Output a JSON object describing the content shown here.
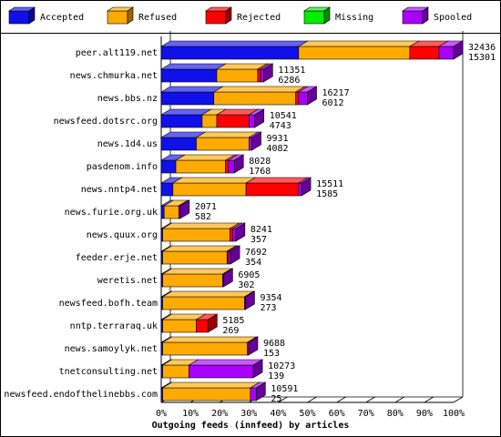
{
  "chart_data": {
    "type": "bar3d",
    "title": "Outgoing feeds (innfeed) by articles",
    "categories": [
      "peer.alt119.net",
      "news.chmurka.net",
      "news.bbs.nz",
      "newsfeed.dotsrc.org",
      "news.1d4.us",
      "pasdenom.info",
      "news.nntp4.net",
      "news.furie.org.uk",
      "news.quux.org",
      "feeder.erje.net",
      "weretis.net",
      "newsfeed.bofh.team",
      "nntp.terraraq.uk",
      "news.samoylyk.net",
      "tnetconsulting.net",
      "newsfeed.endofthelinebbs.com"
    ],
    "series": [
      {
        "name": "Accepted",
        "color": "#1010e8",
        "values": [
          47,
          19,
          18,
          14,
          12,
          5,
          4,
          1,
          0.5,
          0.5,
          0.5,
          0.5,
          0.5,
          0.5,
          0.5,
          0.5
        ]
      },
      {
        "name": "Refused",
        "color": "#ffaa00",
        "values": [
          38,
          14,
          28,
          5,
          18,
          17,
          25,
          5,
          23,
          22,
          20.5,
          28,
          11.5,
          29,
          9,
          30
        ]
      },
      {
        "name": "Rejected",
        "color": "#ff0000",
        "values": [
          10,
          1,
          1,
          11,
          0,
          1,
          18,
          0,
          1,
          0.5,
          0,
          0,
          4,
          0,
          0,
          0
        ]
      },
      {
        "name": "Missing",
        "color": "#00ee00",
        "values": [
          0,
          0,
          0,
          0,
          0,
          0,
          0,
          0,
          0,
          0,
          0,
          0,
          0,
          0,
          0,
          0
        ]
      },
      {
        "name": "Spooled",
        "color": "#aa00ff",
        "values": [
          5,
          1,
          3,
          2,
          1,
          2,
          1,
          0.5,
          1,
          0.7,
          0.3,
          0.3,
          0,
          0.4,
          22,
          2
        ]
      }
    ],
    "right_labels": [
      [
        32436,
        15301
      ],
      [
        11351,
        6286
      ],
      [
        16217,
        6012
      ],
      [
        10541,
        4743
      ],
      [
        9931,
        4082
      ],
      [
        8028,
        1768
      ],
      [
        15511,
        1585
      ],
      [
        2071,
        582
      ],
      [
        8241,
        357
      ],
      [
        7692,
        354
      ],
      [
        6905,
        302
      ],
      [
        9354,
        273
      ],
      [
        5185,
        269
      ],
      [
        9688,
        153
      ],
      [
        10273,
        139
      ],
      [
        10591,
        25
      ]
    ],
    "xlim": [
      0,
      100
    ],
    "xticks": [
      {
        "value": 0,
        "label": "0%"
      },
      {
        "value": 10,
        "label": "10%"
      },
      {
        "value": 20,
        "label": "20%"
      },
      {
        "value": 30,
        "label": "30%"
      },
      {
        "value": 40,
        "label": "40%"
      },
      {
        "value": 50,
        "label": "50%"
      },
      {
        "value": 60,
        "label": "60%"
      },
      {
        "value": 70,
        "label": "70%"
      },
      {
        "value": 80,
        "label": "80%"
      },
      {
        "value": 90,
        "label": "90%"
      },
      {
        "value": 100,
        "label": "100%"
      }
    ]
  }
}
